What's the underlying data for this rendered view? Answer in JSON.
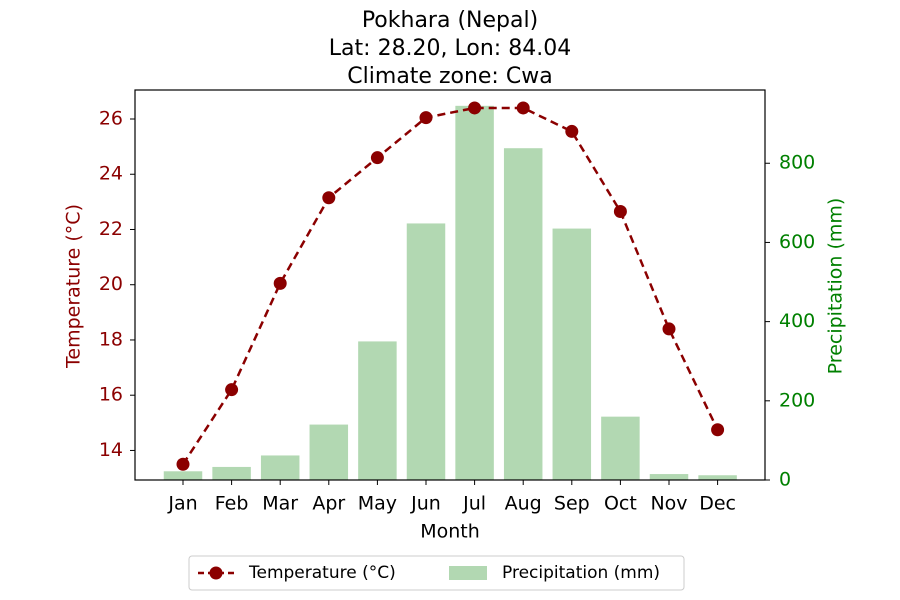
{
  "chart_data": {
    "type": "bar+line",
    "title_lines": [
      "Pokhara (Nepal)",
      "Lat: 28.20, Lon: 84.04",
      "Climate zone: Cwa"
    ],
    "xlabel": "Month",
    "categories": [
      "Jan",
      "Feb",
      "Mar",
      "Apr",
      "May",
      "Jun",
      "Jul",
      "Aug",
      "Sep",
      "Oct",
      "Nov",
      "Dec"
    ],
    "temperature": {
      "name": "Temperature (°C)",
      "axis_label": "Temperature (°C)",
      "color": "#8b0000",
      "values": [
        13.5,
        16.2,
        20.05,
        23.15,
        24.6,
        26.05,
        26.4,
        26.4,
        25.55,
        22.65,
        18.4,
        14.75
      ],
      "ylim": [
        12.93,
        27.05
      ],
      "ticks": [
        14,
        16,
        18,
        20,
        22,
        24,
        26
      ]
    },
    "precipitation": {
      "name": "Precipitation (mm)",
      "axis_label": "Precipitation (mm)",
      "color": "#b2d8b2",
      "axis_color": "#008000",
      "values": [
        22,
        33,
        62,
        140,
        350,
        648,
        945,
        838,
        635,
        160,
        15,
        12
      ],
      "ylim": [
        0,
        985
      ],
      "ticks": [
        0,
        200,
        400,
        600,
        800
      ]
    },
    "legend_position": "bottom-center",
    "grid": false
  }
}
